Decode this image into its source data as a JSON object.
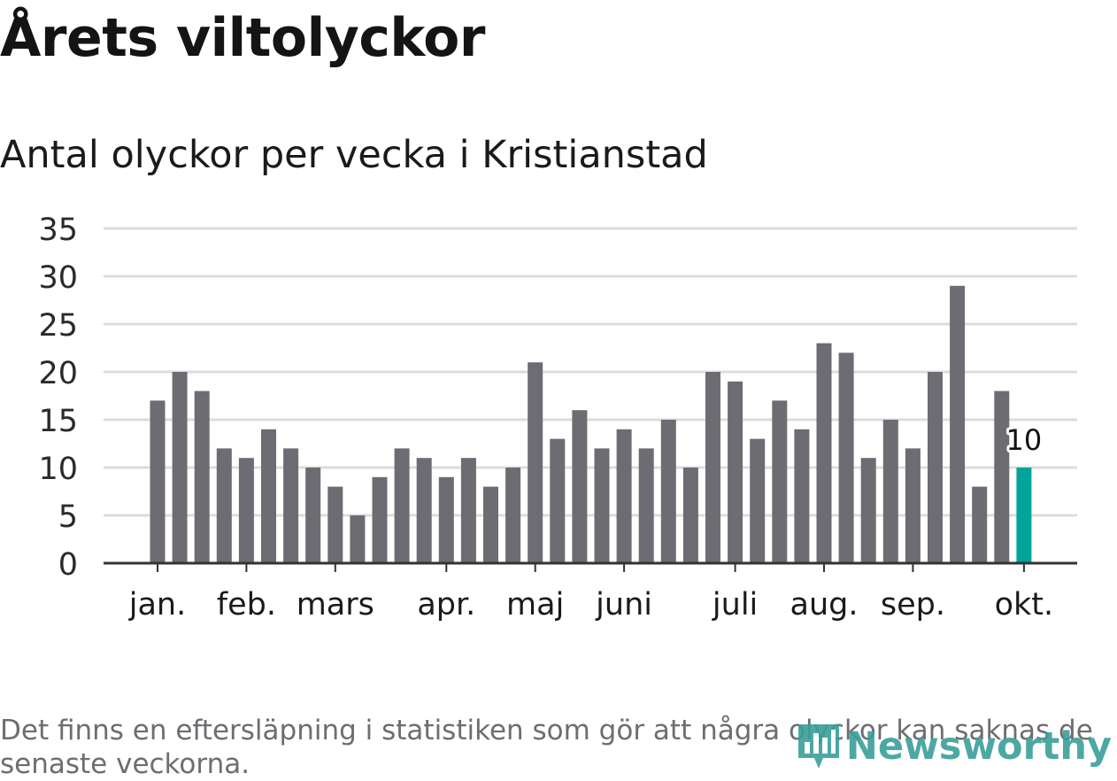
{
  "title": "Årets viltolyckor",
  "subtitle": "Antal olyckor per vecka i Kristianstad",
  "footnote": "Det finns en eftersläpning i statistiken som gör att några olyckor kan saknas de senaste veckorna.",
  "brand": "Newsworthy",
  "colors": {
    "bar": "#6d6c72",
    "highlight": "#00a59a",
    "grid": "#dcdcdc",
    "axis": "#333333",
    "brand": "#3a9f9a"
  },
  "chart_data": {
    "type": "bar",
    "title": "Årets viltolyckor",
    "subtitle": "Antal olyckor per vecka i Kristianstad",
    "xlabel": "",
    "ylabel": "",
    "ylim": [
      0,
      35
    ],
    "yticks": [
      0,
      5,
      10,
      15,
      20,
      25,
      30,
      35
    ],
    "values": [
      17,
      20,
      18,
      12,
      11,
      14,
      12,
      10,
      8,
      5,
      9,
      12,
      11,
      9,
      11,
      8,
      10,
      21,
      13,
      16,
      12,
      14,
      12,
      15,
      10,
      20,
      19,
      13,
      17,
      14,
      23,
      22,
      11,
      15,
      12,
      20,
      29,
      8,
      18,
      10
    ],
    "month_ticks": [
      {
        "label": "jan.",
        "index": 0
      },
      {
        "label": "feb.",
        "index": 4
      },
      {
        "label": "mars",
        "index": 8
      },
      {
        "label": "apr.",
        "index": 13
      },
      {
        "label": "maj",
        "index": 17
      },
      {
        "label": "juni",
        "index": 21
      },
      {
        "label": "juli",
        "index": 26
      },
      {
        "label": "aug.",
        "index": 30
      },
      {
        "label": "sep.",
        "index": 34
      },
      {
        "label": "okt.",
        "index": 39
      }
    ],
    "highlight_index": 39,
    "highlight_label": "10"
  }
}
